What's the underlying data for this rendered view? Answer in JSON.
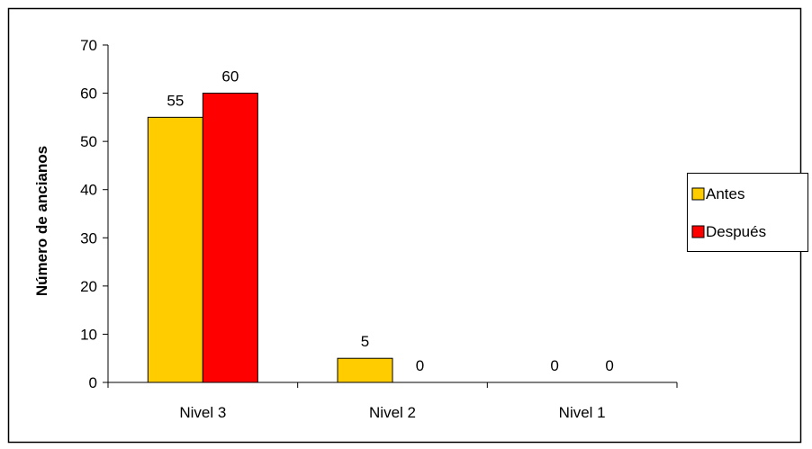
{
  "chart_data": {
    "type": "bar",
    "categories": [
      "Nivel 3",
      "Nivel 2",
      "Nivel 1"
    ],
    "series": [
      {
        "name": "Antes",
        "values": [
          55,
          5,
          0
        ],
        "color": "#FFCC00"
      },
      {
        "name": "Después",
        "values": [
          60,
          0,
          0
        ],
        "color": "#FF0000"
      }
    ],
    "ylabel": "Número de ancianos",
    "xlabel": "",
    "ylim": [
      0,
      70
    ],
    "yticks": [
      "0",
      "10",
      "20",
      "30",
      "40",
      "50",
      "60",
      "70"
    ],
    "data_labels": [
      [
        "55",
        "5",
        "0"
      ],
      [
        "60",
        "0",
        "0"
      ]
    ],
    "grid": false,
    "legend": "right"
  }
}
